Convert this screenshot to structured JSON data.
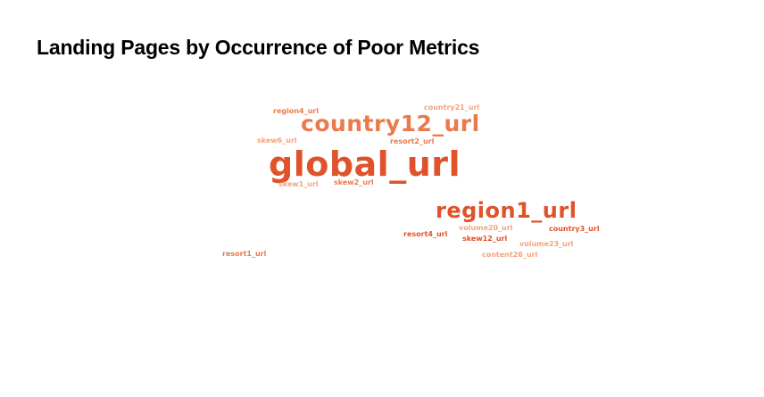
{
  "title": "Landing Pages by Occurrence of Poor Metrics",
  "colors": {
    "dark": "#e0522a",
    "mid": "#ea7a4d",
    "light": "#f4a27e"
  },
  "words": [
    {
      "text": "region4_url",
      "tone": "mid"
    },
    {
      "text": "country21_url",
      "tone": "light"
    },
    {
      "text": "country12_url",
      "tone": "mid"
    },
    {
      "text": "skew6_url",
      "tone": "light"
    },
    {
      "text": "resort2_url",
      "tone": "mid"
    },
    {
      "text": "global_url",
      "tone": "dark"
    },
    {
      "text": "skew1_url",
      "tone": "light"
    },
    {
      "text": "skew2_url",
      "tone": "mid"
    },
    {
      "text": "region1_url",
      "tone": "dark"
    },
    {
      "text": "volume20_url",
      "tone": "light"
    },
    {
      "text": "country3_url",
      "tone": "dark"
    },
    {
      "text": "resort4_url",
      "tone": "dark"
    },
    {
      "text": "skew12_url",
      "tone": "dark"
    },
    {
      "text": "volume23_url",
      "tone": "light"
    },
    {
      "text": "resort1_url",
      "tone": "mid"
    },
    {
      "text": "content26_url",
      "tone": "light"
    }
  ]
}
